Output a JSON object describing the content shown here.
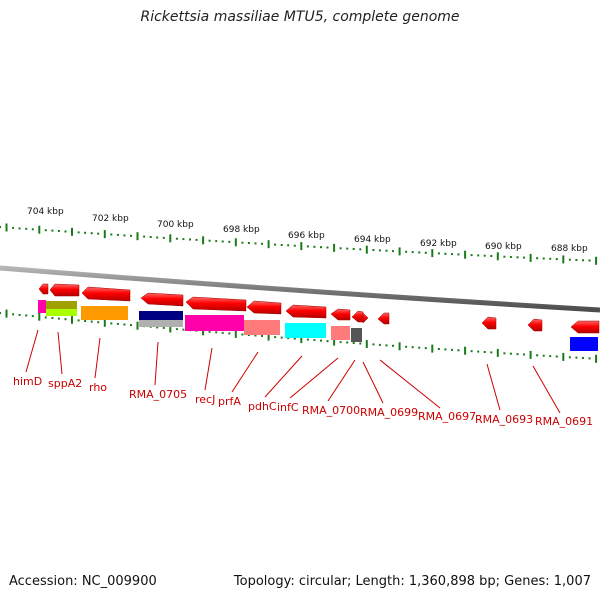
{
  "title": "Rickettsia massiliae MTU5, complete genome",
  "accession": "Accession: NC_009900",
  "info": "Topology: circular; Length: 1,360,898 bp; Genes: 1,007",
  "scale_labels": [
    "704 kbp",
    "702 kbp",
    "700 kbp",
    "698 kbp",
    "696 kbp",
    "694 kbp",
    "692 kbp",
    "690 kbp",
    "688 kbp"
  ],
  "gene_labels": [
    "himD",
    "sppA2",
    "rho",
    "RMA_0705",
    "recJ",
    "prfA",
    "pdhC",
    "infC",
    "RMA_0700",
    "RMA_0699",
    "RMA_0697",
    "RMA_0693",
    "RMA_0691"
  ],
  "colors": {
    "gene_arrow": "#ff0000",
    "tick": "#1a7a1a",
    "backbone": "#808080",
    "label": "#cc0000"
  }
}
